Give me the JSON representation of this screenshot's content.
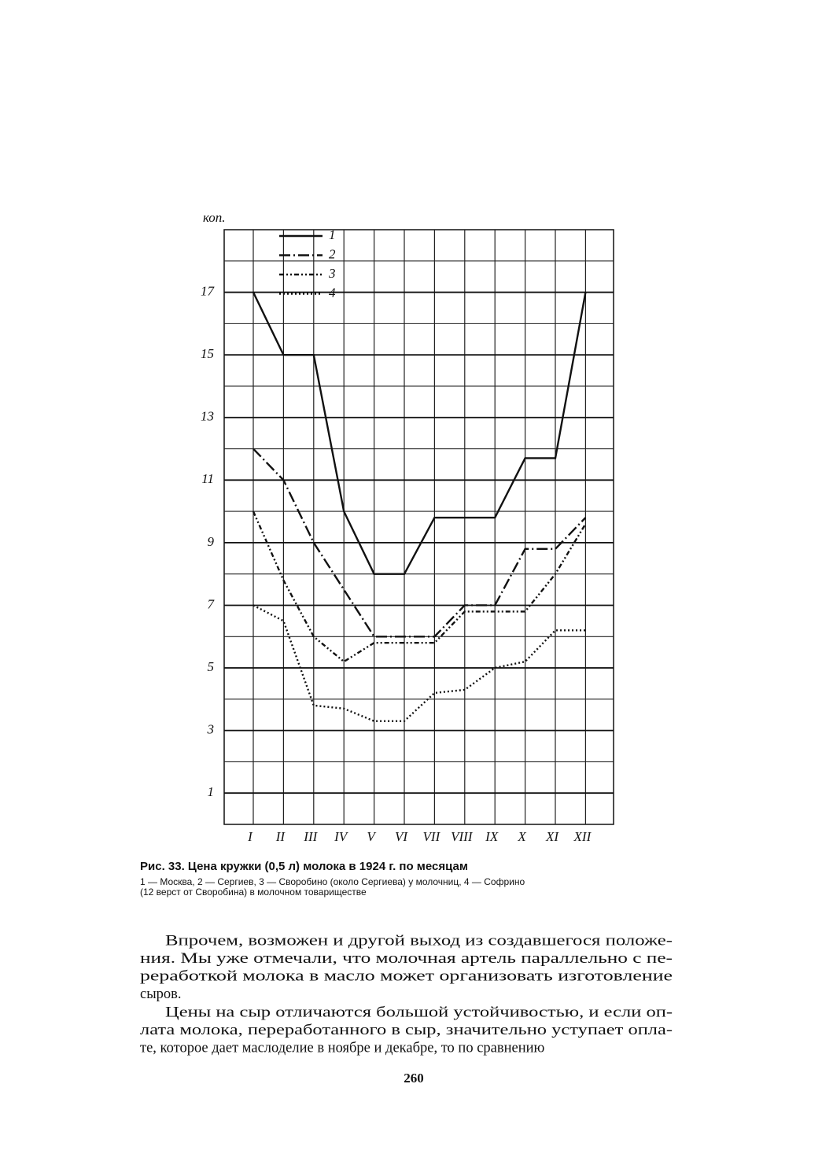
{
  "chart_data": {
    "type": "line",
    "ylabel": "коп.",
    "categories": [
      "I",
      "II",
      "III",
      "IV",
      "V",
      "VI",
      "VII",
      "VIII",
      "IX",
      "X",
      "XI",
      "XII"
    ],
    "series": [
      {
        "name": "1",
        "color": "#111111",
        "dash": "none",
        "values": [
          17,
          15,
          15,
          10,
          8,
          8,
          9.8,
          9.8,
          9.8,
          11.7,
          11.7,
          17
        ]
      },
      {
        "name": "2",
        "color": "#111111",
        "dash": "14 4 2 4",
        "values": [
          12,
          11,
          9,
          7.5,
          6,
          6,
          6,
          7,
          7,
          8.8,
          8.8,
          9.8
        ]
      },
      {
        "name": "3",
        "color": "#111111",
        "dash": "6 3 2 3 2 3",
        "values": [
          10,
          7.8,
          6,
          5.2,
          5.8,
          5.8,
          5.8,
          6.8,
          6.8,
          6.8,
          8,
          9.6
        ]
      },
      {
        "name": "4",
        "color": "#111111",
        "dash": "2 3",
        "values": [
          7,
          6.5,
          3.8,
          3.7,
          3.3,
          3.3,
          4.2,
          4.3,
          5,
          5.2,
          6.2,
          6.2
        ]
      }
    ],
    "ylim": [
      0,
      19
    ],
    "yticks": [
      1,
      3,
      5,
      7,
      9,
      11,
      13,
      15,
      17
    ],
    "minor_yticks": [
      2,
      4,
      6,
      8,
      10,
      12,
      14,
      16,
      18
    ],
    "grid": true,
    "legend": "top-left"
  },
  "caption": {
    "title": "Рис. 33. Цена кружки (0,5 л) молока в 1924 г. по месяцам",
    "lines": [
      "1 — Москва, 2 — Сергиев, 3 — Своробино (около Сергиева) у молочниц, 4 — Софрино",
      "(12 верст от Своробина) в молочном товариществе"
    ]
  },
  "body": {
    "paragraphs": [
      [
        "Впрочем, возможен и другой выход из создавшегося положе-",
        "ния. Мы уже отмечали, что молочная артель параллельно с пе-",
        "реработкой молока в масло может организовать изготовление",
        "сыров."
      ],
      [
        "Цены на сыр отличаются большой устойчивостью, и если оп-",
        "лата молока, переработанного в сыр, значительно уступает опла-",
        "те, которое дает маслоделие в ноябре и декабре, то по сравнению"
      ]
    ]
  },
  "page_number": "260"
}
